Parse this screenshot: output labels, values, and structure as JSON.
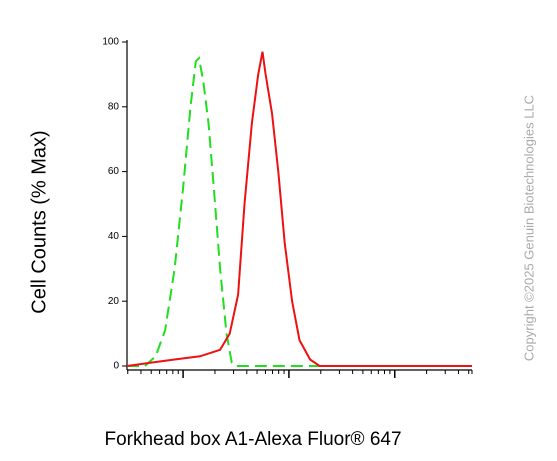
{
  "chart_data": {
    "type": "line",
    "x_label": "Forkhead box A1-Alexa Fluor® 647",
    "y_label": "Cell Counts (% Max)",
    "watermark": "Copyright ©2025 Genuin Biotechnologies LLC",
    "xlim": [
      0.47,
      3.73
    ],
    "xticks": [
      1,
      2,
      3
    ],
    "x_log_minor_ticks": true,
    "ylim": [
      0,
      100
    ],
    "yticks": [
      0,
      20,
      40,
      60,
      80,
      100
    ],
    "series": [
      {
        "color": "#22dd22",
        "dash": true,
        "x": [
          0.47,
          0.64,
          0.74,
          0.83,
          0.92,
          1.0,
          1.07,
          1.12,
          1.15,
          1.19,
          1.24,
          1.29,
          1.35,
          1.41,
          1.46,
          1.5,
          3.73
        ],
        "values": [
          0,
          0,
          3,
          11,
          30,
          55,
          80,
          94,
          95,
          88,
          75,
          55,
          30,
          10,
          1,
          0,
          0
        ]
      },
      {
        "color": "#ee1111",
        "dash": false,
        "x": [
          0.47,
          0.69,
          0.92,
          1.16,
          1.35,
          1.44,
          1.52,
          1.58,
          1.65,
          1.71,
          1.75,
          1.78,
          1.84,
          1.9,
          1.96,
          2.03,
          2.1,
          2.2,
          2.29,
          3.73
        ],
        "values": [
          0,
          1,
          2,
          3,
          5,
          10,
          22,
          50,
          75,
          90,
          97,
          90,
          78,
          60,
          38,
          20,
          8,
          2,
          0,
          0
        ]
      }
    ]
  }
}
